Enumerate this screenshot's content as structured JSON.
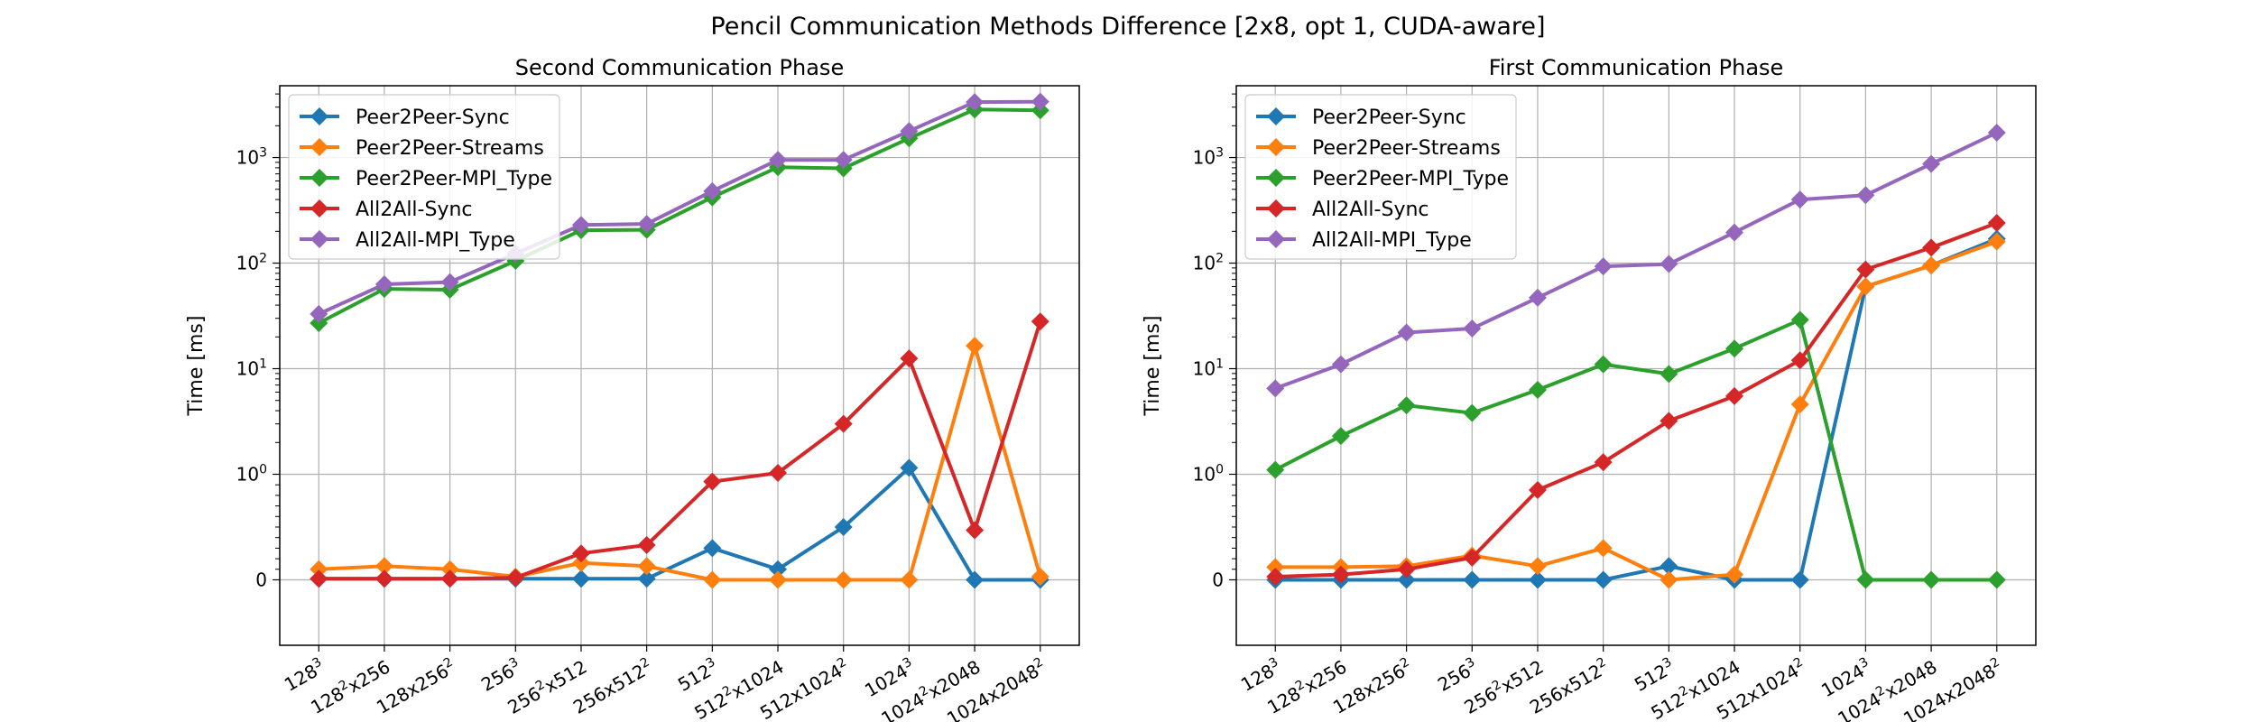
{
  "figure": {
    "title": "Pencil Communication Methods Difference [2x8, opt 1, CUDA-aware]"
  },
  "colors": {
    "Peer2Peer-Sync": "#1f77b4",
    "Peer2Peer-Streams": "#ff7f0e",
    "Peer2Peer-MPI_Type": "#2ca02c",
    "All2All-Sync": "#d62728",
    "All2All-MPI_Type": "#9467bd"
  },
  "chart_data": [
    {
      "type": "line",
      "title": "Second Communication Phase",
      "ylabel": "Time [ms]",
      "xlabel": "",
      "yscale": "symlog",
      "grid": true,
      "legend_position": "top-left",
      "categories": [
        "128^3",
        "128^2x256",
        "128x256^2",
        "256^3",
        "256^2x512",
        "256x512^2",
        "512^3",
        "512^2x1024",
        "512x1024^2",
        "1024^3",
        "1024^2x2048",
        "1024x2048^2"
      ],
      "y_ticks": [
        "0",
        "10^0",
        "10^1",
        "10^2",
        "10^3"
      ],
      "series": [
        {
          "name": "Peer2Peer-Sync",
          "values": [
            0.01,
            0.01,
            0.01,
            0.01,
            0.01,
            0.01,
            0.3,
            0.1,
            0.5,
            1.15,
            0.0,
            0.0
          ]
        },
        {
          "name": "Peer2Peer-Streams",
          "values": [
            0.1,
            0.13,
            0.1,
            0.03,
            0.16,
            0.13,
            0.0,
            0.0,
            0.0,
            0.0,
            16.5,
            0.03
          ]
        },
        {
          "name": "Peer2Peer-MPI_Type",
          "values": [
            27,
            57,
            56,
            105,
            205,
            207,
            420,
            810,
            790,
            1520,
            2850,
            2800
          ]
        },
        {
          "name": "All2All-Sync",
          "values": [
            0.01,
            0.01,
            0.01,
            0.02,
            0.25,
            0.33,
            0.93,
            1.03,
            3.0,
            12.5,
            0.47,
            28
          ]
        },
        {
          "name": "All2All-MPI_Type",
          "values": [
            33,
            63,
            66,
            123,
            230,
            235,
            480,
            950,
            950,
            1780,
            3350,
            3380
          ]
        }
      ]
    },
    {
      "type": "line",
      "title": "First Communication Phase",
      "ylabel": "Time [ms]",
      "xlabel": "",
      "yscale": "symlog",
      "grid": true,
      "legend_position": "top-left",
      "categories": [
        "128^3",
        "128^2x256",
        "128x256^2",
        "256^3",
        "256^2x512",
        "256x512^2",
        "512^3",
        "512^2x1024",
        "512x1024^2",
        "1024^3",
        "1024^2x2048",
        "1024x2048^2"
      ],
      "y_ticks": [
        "0",
        "10^0",
        "10^1",
        "10^2",
        "10^3"
      ],
      "series": [
        {
          "name": "Peer2Peer-Sync",
          "values": [
            0.0,
            0.0,
            0.0,
            0.0,
            0.0,
            0.0,
            0.13,
            0.0,
            0.0,
            60,
            95,
            170
          ]
        },
        {
          "name": "Peer2Peer-Streams",
          "values": [
            0.12,
            0.12,
            0.13,
            0.23,
            0.13,
            0.3,
            0.0,
            0.05,
            4.6,
            60,
            95,
            160
          ]
        },
        {
          "name": "Peer2Peer-MPI_Type",
          "values": [
            1.1,
            2.3,
            4.5,
            3.8,
            6.3,
            11.0,
            8.9,
            15.5,
            29.0,
            0.0,
            0.0,
            0.0
          ]
        },
        {
          "name": "All2All-Sync",
          "values": [
            0.03,
            0.05,
            0.1,
            0.21,
            0.85,
            1.3,
            3.2,
            5.5,
            12.0,
            87,
            140,
            240
          ]
        },
        {
          "name": "All2All-MPI_Type",
          "values": [
            6.5,
            11.0,
            22.0,
            24.0,
            47.0,
            93.0,
            98.0,
            195.0,
            400.0,
            440.0,
            870.0,
            1720.0
          ]
        }
      ]
    }
  ]
}
